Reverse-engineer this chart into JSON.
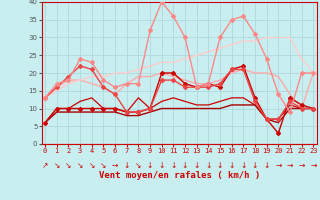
{
  "xlabel": "Vent moyen/en rafales ( km/h )",
  "bg_color": "#c8eef0",
  "grid_color": "#b0d8dc",
  "xlim": [
    -0.3,
    23.3
  ],
  "ylim": [
    0,
    40
  ],
  "yticks": [
    0,
    5,
    10,
    15,
    20,
    25,
    30,
    35,
    40
  ],
  "xticks": [
    0,
    1,
    2,
    3,
    4,
    5,
    6,
    7,
    8,
    9,
    10,
    11,
    12,
    13,
    14,
    15,
    16,
    17,
    18,
    19,
    20,
    21,
    22,
    23
  ],
  "series": [
    {
      "x": [
        0,
        1,
        2,
        3,
        4,
        5,
        6,
        7,
        8,
        9,
        10,
        11,
        12,
        13,
        14,
        15,
        16,
        17,
        18,
        19,
        20,
        21,
        22,
        23
      ],
      "y": [
        6,
        10,
        10,
        10,
        10,
        10,
        10,
        9,
        9,
        10,
        20,
        20,
        17,
        16,
        17,
        16,
        21,
        22,
        13,
        7,
        3,
        13,
        11,
        10
      ],
      "color": "#cc0000",
      "lw": 1.0,
      "marker": "D",
      "ms": 2.0,
      "zorder": 5
    },
    {
      "x": [
        0,
        1,
        2,
        3,
        4,
        5,
        6,
        7,
        8,
        9,
        10,
        11,
        12,
        13,
        14,
        15,
        16,
        17,
        18,
        19,
        20,
        21,
        22,
        23
      ],
      "y": [
        6,
        9,
        9,
        9,
        9,
        9,
        9,
        8,
        8,
        9,
        10,
        10,
        10,
        10,
        10,
        10,
        11,
        11,
        11,
        7,
        6,
        10,
        10,
        10
      ],
      "color": "#aa0000",
      "lw": 1.0,
      "marker": null,
      "ms": 0,
      "zorder": 4
    },
    {
      "x": [
        0,
        1,
        2,
        3,
        4,
        5,
        6,
        7,
        8,
        9,
        10,
        11,
        12,
        13,
        14,
        15,
        16,
        17,
        18,
        19,
        20,
        21,
        22,
        23
      ],
      "y": [
        6,
        10,
        10,
        12,
        13,
        10,
        10,
        9,
        13,
        10,
        12,
        13,
        12,
        11,
        11,
        12,
        13,
        13,
        11,
        7,
        7,
        11,
        10,
        10
      ],
      "color": "#cc0000",
      "lw": 0.9,
      "marker": null,
      "ms": 0,
      "zorder": 3
    },
    {
      "x": [
        0,
        1,
        2,
        3,
        4,
        5,
        6,
        7,
        8,
        9,
        10,
        11,
        12,
        13,
        14,
        15,
        16,
        17,
        18,
        19,
        20,
        21,
        22,
        23
      ],
      "y": [
        13,
        16,
        19,
        22,
        21,
        16,
        14,
        9,
        9,
        10,
        18,
        18,
        16,
        16,
        16,
        17,
        21,
        21,
        12,
        7,
        7,
        12,
        10,
        10
      ],
      "color": "#ee4444",
      "lw": 1.0,
      "marker": "D",
      "ms": 2.0,
      "zorder": 5
    },
    {
      "x": [
        0,
        1,
        2,
        3,
        4,
        5,
        6,
        7,
        8,
        9,
        10,
        11,
        12,
        13,
        14,
        15,
        16,
        17,
        18,
        19,
        20,
        21,
        22,
        23
      ],
      "y": [
        13,
        17,
        18,
        24,
        23,
        18,
        16,
        17,
        17,
        32,
        40,
        36,
        30,
        16,
        17,
        30,
        35,
        36,
        31,
        24,
        14,
        9,
        20,
        20
      ],
      "color": "#ff8888",
      "lw": 1.0,
      "marker": "D",
      "ms": 2.0,
      "zorder": 5
    },
    {
      "x": [
        0,
        1,
        2,
        3,
        4,
        5,
        6,
        7,
        8,
        9,
        10,
        11,
        12,
        13,
        14,
        15,
        16,
        17,
        18,
        19,
        20,
        21,
        22,
        23
      ],
      "y": [
        13,
        16,
        18,
        18,
        17,
        16,
        14,
        17,
        19,
        19,
        20,
        19,
        18,
        17,
        17,
        18,
        20,
        21,
        20,
        20,
        19,
        14,
        10,
        20
      ],
      "color": "#ffaaaa",
      "lw": 1.0,
      "marker": null,
      "ms": 0,
      "zorder": 3
    },
    {
      "x": [
        0,
        1,
        2,
        3,
        4,
        5,
        6,
        7,
        8,
        9,
        10,
        11,
        12,
        13,
        14,
        15,
        16,
        17,
        18,
        19,
        20,
        21,
        22,
        23
      ],
      "y": [
        13,
        15,
        17,
        18,
        19,
        19,
        20,
        20,
        21,
        22,
        23,
        23,
        24,
        25,
        26,
        27,
        28,
        29,
        29,
        30,
        30,
        30,
        24,
        20
      ],
      "color": "#ffcccc",
      "lw": 1.0,
      "marker": null,
      "ms": 0,
      "zorder": 3
    }
  ],
  "wind_arrows": [
    "↗",
    "↘",
    "↘",
    "↘",
    "↘",
    "↘",
    "→",
    "↓",
    "↘",
    "↓",
    "↓",
    "↓",
    "↓",
    "↓",
    "↓",
    "↓",
    "↓",
    "↓",
    "↓",
    "↓",
    "→",
    "→",
    "→",
    "→"
  ]
}
